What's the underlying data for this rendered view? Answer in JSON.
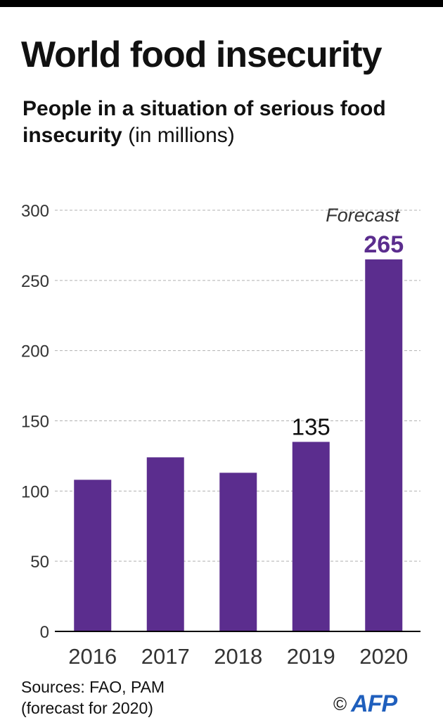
{
  "header": {
    "title": "World food insecurity",
    "subtitle_bold": "People in a situation of serious food insecurity",
    "subtitle_light": "(in millions)"
  },
  "footer": {
    "sources_line1": "Sources: FAO, PAM",
    "sources_line2": "(forecast for 2020)",
    "copyright": "©",
    "logo_text": "AFP"
  },
  "colors": {
    "bar": "#5b2d8e",
    "highlight_label": "#5b2d8e",
    "grid": "#b0b0b0",
    "axis": "#000000",
    "text": "#222222"
  },
  "chart_data": {
    "type": "bar",
    "title": "World food insecurity",
    "ylabel": "People in a situation of serious food insecurity (in millions)",
    "xlabel": "",
    "categories": [
      "2016",
      "2017",
      "2018",
      "2019",
      "2020"
    ],
    "values": [
      108,
      124,
      113,
      135,
      265
    ],
    "ylim": [
      0,
      300
    ],
    "yticks": [
      0,
      50,
      100,
      150,
      200,
      250,
      300
    ],
    "grid": true,
    "data_labels": [
      {
        "category": "2019",
        "text": "135"
      },
      {
        "category": "2020",
        "text": "265"
      }
    ],
    "annotations": [
      {
        "category": "2020",
        "text": "Forecast"
      }
    ]
  }
}
